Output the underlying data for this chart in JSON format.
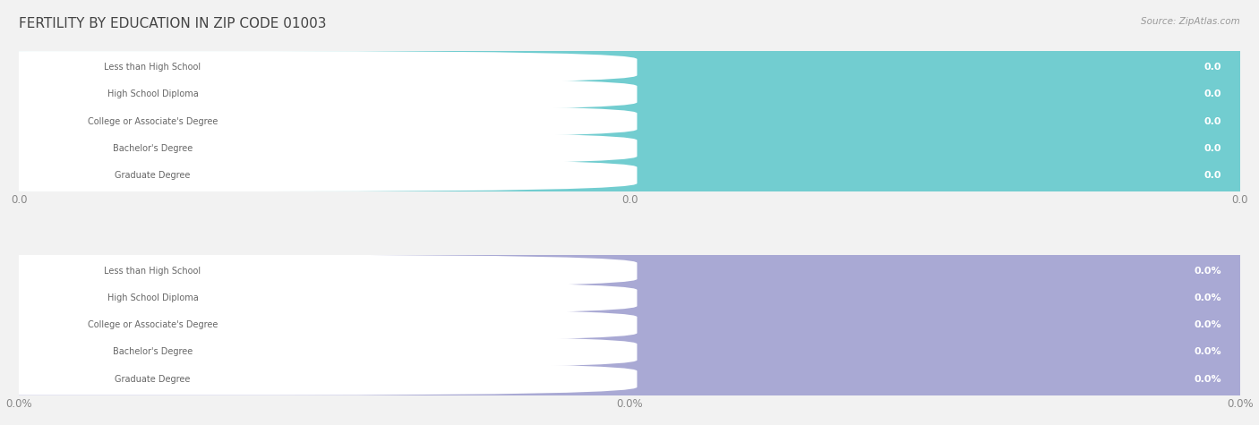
{
  "title": "FERTILITY BY EDUCATION IN ZIP CODE 01003",
  "source": "Source: ZipAtlas.com",
  "categories": [
    "Less than High School",
    "High School Diploma",
    "College or Associate's Degree",
    "Bachelor's Degree",
    "Graduate Degree"
  ],
  "top_values": [
    0.0,
    0.0,
    0.0,
    0.0,
    0.0
  ],
  "bottom_values": [
    0.0,
    0.0,
    0.0,
    0.0,
    0.0
  ],
  "top_bar_color": "#72cdd0",
  "top_bar_bg": "#e8f8f8",
  "bottom_bar_color": "#a9a9d4",
  "bottom_bar_bg": "#e8e8f5",
  "bg_color": "#f2f2f2",
  "row_bg_color": "#f8f8f8",
  "xtick_labels_top": [
    "0.0",
    "0.0",
    "0.0"
  ],
  "xtick_labels_bottom": [
    "0.0%",
    "0.0%",
    "0.0%"
  ],
  "title_fontsize": 11,
  "tick_fontsize": 8.5
}
